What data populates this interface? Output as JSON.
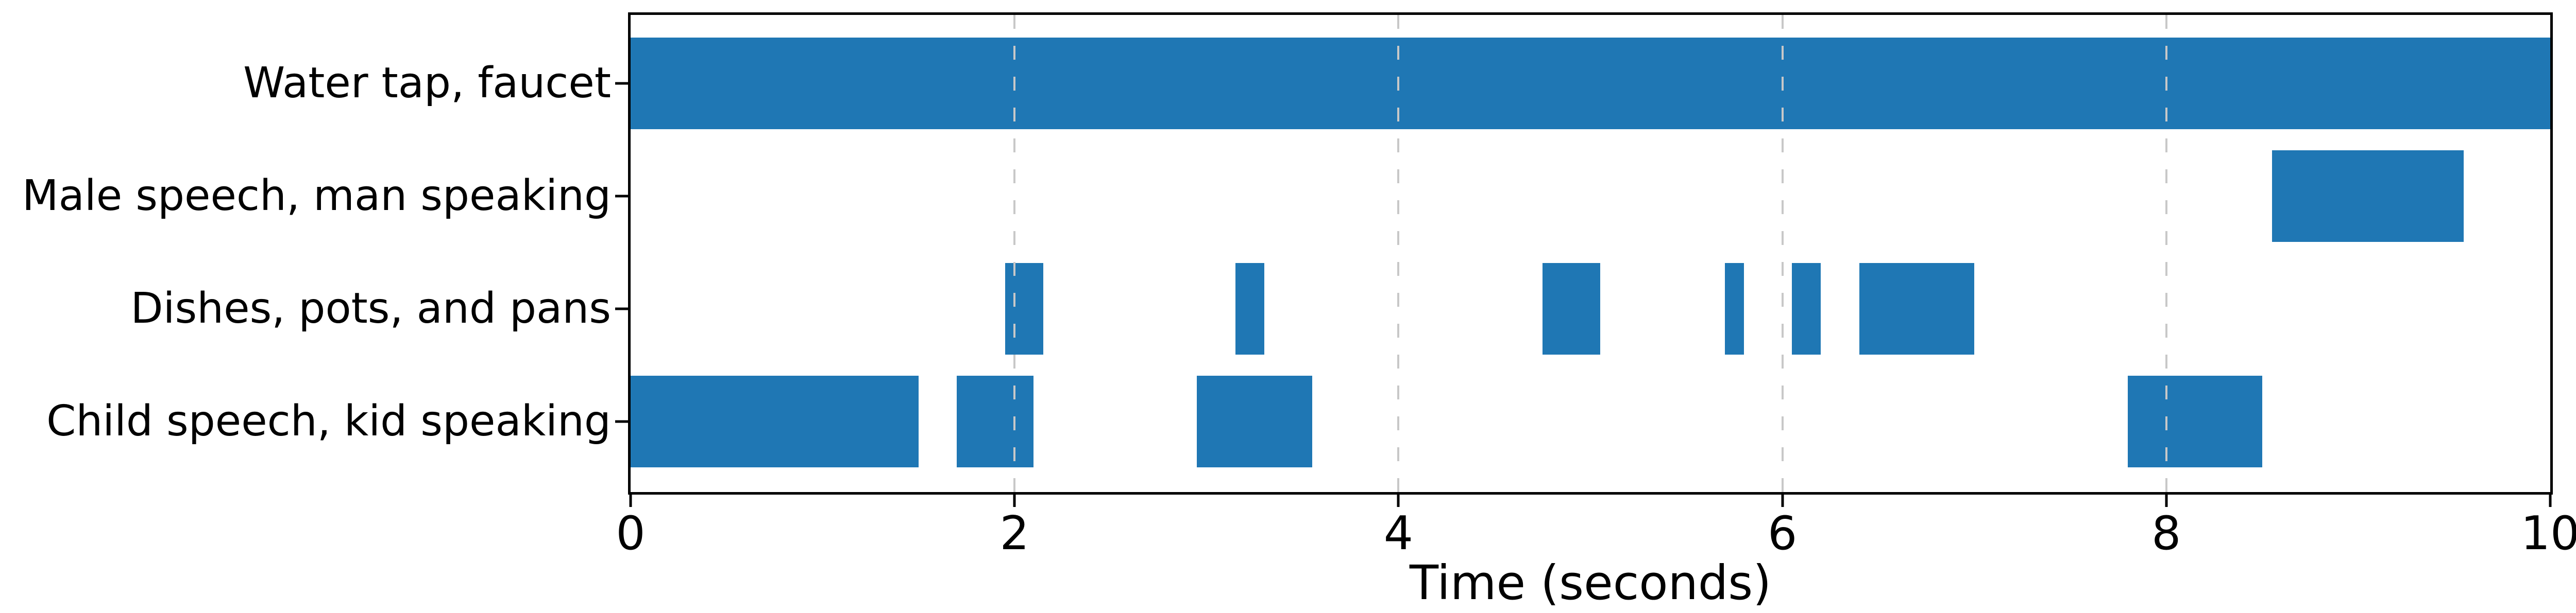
{
  "figure": {
    "background": "#ffffff",
    "text_color": "#000000"
  },
  "chart_data": {
    "type": "gantt",
    "title": "",
    "xlabel": "Time (seconds)",
    "ylabel": "",
    "xlim": [
      0,
      10
    ],
    "xtick_values": [
      0,
      2,
      4,
      6,
      8,
      10
    ],
    "xtick_labels": [
      "0",
      "2",
      "4",
      "6",
      "8",
      "10"
    ],
    "grid": {
      "axis": "x",
      "at": [
        2,
        4,
        6,
        8
      ],
      "style": "dashed",
      "color": "#c8c8c8",
      "drawn_on_top_of_bars": true
    },
    "bar_color": "#1f77b4",
    "legend": "none",
    "rows_top_to_bottom": [
      {
        "label": "Water tap, faucet",
        "segments": [
          {
            "start": 0,
            "end": 10
          }
        ]
      },
      {
        "label": "Male speech, man speaking",
        "segments": [
          {
            "start": 8.55,
            "end": 9.55
          }
        ]
      },
      {
        "label": "Dishes, pots, and pans",
        "segments": [
          {
            "start": 1.95,
            "end": 2.15
          },
          {
            "start": 3.15,
            "end": 3.3
          },
          {
            "start": 4.75,
            "end": 5.05
          },
          {
            "start": 5.7,
            "end": 5.8
          },
          {
            "start": 6.05,
            "end": 6.2
          },
          {
            "start": 6.4,
            "end": 7.0
          }
        ]
      },
      {
        "label": "Child speech, kid speaking",
        "segments": [
          {
            "start": 0,
            "end": 1.5
          },
          {
            "start": 1.7,
            "end": 2.1
          },
          {
            "start": 2.95,
            "end": 3.55
          },
          {
            "start": 7.8,
            "end": 8.5
          }
        ]
      }
    ]
  }
}
